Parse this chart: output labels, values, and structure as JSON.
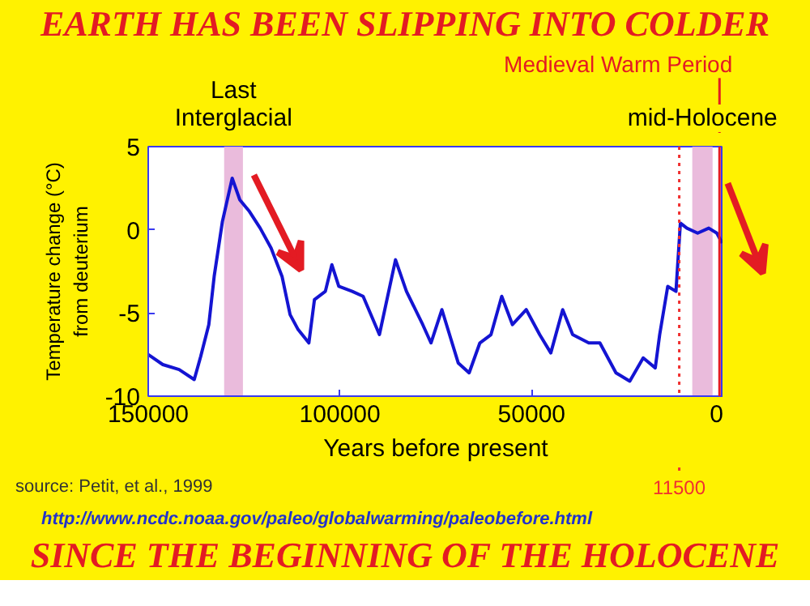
{
  "chart_data": {
    "type": "line",
    "title": "EARTH HAS BEEN SLIPPING INTO COLDER",
    "subtitle": "SINCE THE BEGINNING OF THE HOLOCENE",
    "xlabel": "Years before present",
    "ylabel": "Temperature change (°C)\nfrom deuterium",
    "x": [
      150000,
      146200,
      141950,
      138000,
      136300,
      134200,
      132800,
      130650,
      128100,
      126100,
      123600,
      120800,
      117950,
      115100,
      113000,
      110900,
      108100,
      106650,
      103800,
      102100,
      100300,
      96800,
      93950,
      89700,
      85500,
      82650,
      78400,
      76250,
      73400,
      69150,
      66300,
      63500,
      60600,
      57800,
      55000,
      51400,
      47900,
      45000,
      41900,
      39300,
      35100,
      32200,
      28000,
      24400,
      20900,
      17750,
      16600,
      14500,
      12350,
      11200,
      9500,
      6700,
      3800,
      1700,
      300
    ],
    "series": [
      {
        "color": "#1414d2",
        "values": [
          -7.5,
          -8.1,
          -8.4,
          -9.0,
          -7.6,
          -5.7,
          -2.8,
          0.5,
          3.1,
          1.8,
          1.1,
          0.1,
          -1.1,
          -2.8,
          -5.1,
          -6.0,
          -6.8,
          -4.2,
          -3.7,
          -2.1,
          -3.4,
          -3.7,
          -4.0,
          -6.3,
          -1.8,
          -3.7,
          -5.7,
          -6.8,
          -4.8,
          -8.0,
          -8.6,
          -6.8,
          -6.3,
          -4.0,
          -5.7,
          -4.8,
          -6.3,
          -7.4,
          -4.8,
          -6.3,
          -6.8,
          -6.8,
          -8.6,
          -9.1,
          -7.7,
          -8.3,
          -6.3,
          -3.4,
          -3.7,
          0.4,
          0.1,
          -0.2,
          0.1,
          -0.2,
          -0.8
        ]
      }
    ],
    "xlim": [
      150000,
      0
    ],
    "ylim": [
      -10,
      5
    ],
    "xticks": [
      150000,
      100000,
      50000,
      0
    ],
    "yticks": [
      -10,
      -5,
      0,
      5
    ],
    "grid": false,
    "line_style": "solid",
    "marker": "none",
    "bands": [
      {
        "axis": "x",
        "from": 130200,
        "to": 125300,
        "label": "Last\nInterglacial",
        "color": "#e8b4d8"
      },
      {
        "axis": "x",
        "from": 8100,
        "to": 2800,
        "label": "mid-Holocene",
        "color": "#e8b4d8"
      }
    ],
    "ref_lines": [
      {
        "axis": "x",
        "value": 11500,
        "label": "11500",
        "color": "#f03030",
        "line_style": "dotted"
      },
      {
        "axis": "x",
        "value": 1000,
        "label": "Medieval Warm Period",
        "color": "#e31b23",
        "line_style": "solid"
      }
    ],
    "annotations": [
      "source: Petit, et al., 1999",
      "http://www.ncdc.noaa.gov/paleo/globalwarming/paleobefore.html"
    ]
  }
}
